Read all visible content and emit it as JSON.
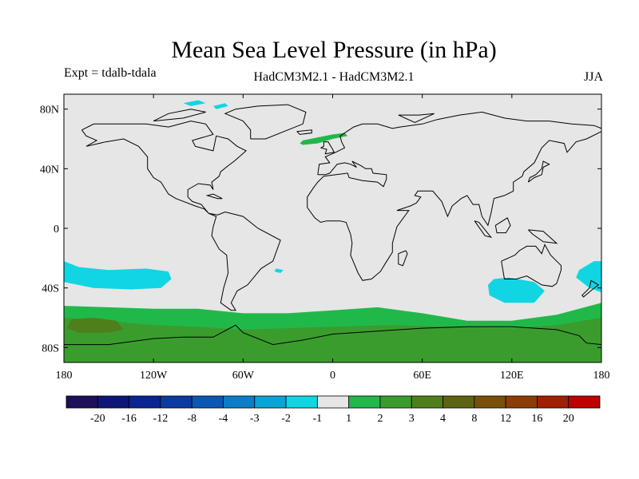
{
  "chart_data": {
    "type": "map-contour",
    "title": "Mean Sea Level Pressure (in hPa)",
    "experiment_label": "Expt = tdalb-tdala",
    "model_label": "HadCM3M2.1 - HadCM3M2.1",
    "season_label": "JJA",
    "lon_range": [
      -180,
      180
    ],
    "lat_range": [
      -90,
      90
    ],
    "x_ticks": [
      {
        "lon": -180,
        "label": "180"
      },
      {
        "lon": -120,
        "label": "120W"
      },
      {
        "lon": -60,
        "label": "60W"
      },
      {
        "lon": 0,
        "label": "0"
      },
      {
        "lon": 60,
        "label": "60E"
      },
      {
        "lon": 120,
        "label": "120E"
      },
      {
        "lon": 180,
        "label": "180"
      }
    ],
    "y_ticks": [
      {
        "lat": 80,
        "label": "80N"
      },
      {
        "lat": 40,
        "label": "40N"
      },
      {
        "lat": 0,
        "label": "0"
      },
      {
        "lat": -40,
        "label": "40S"
      },
      {
        "lat": -80,
        "label": "80S"
      }
    ],
    "colorbar": {
      "colors": [
        "#1f0f5a",
        "#0d1777",
        "#0a2493",
        "#0b3aa3",
        "#0b57b5",
        "#0a7ec8",
        "#0aa3d8",
        "#11d5e2",
        "#e6e6e6",
        "#21b84a",
        "#3b9c2e",
        "#4f7f1b",
        "#5e6312",
        "#7a4f0b",
        "#8d3c05",
        "#a11f02",
        "#c00000"
      ],
      "labels": [
        "-20",
        "-16",
        "-12",
        "-8",
        "-4",
        "-3",
        "-2",
        "-1",
        "1",
        "2",
        "3",
        "4",
        "8",
        "12",
        "16",
        "20"
      ]
    },
    "regions": [
      {
        "name": "north-atlantic-positive",
        "level": "2",
        "color": "#21b84a",
        "polygon": [
          [
            -20,
            59
          ],
          [
            -10,
            61
          ],
          [
            0,
            63
          ],
          [
            8,
            64
          ],
          [
            10,
            62
          ],
          [
            0,
            60
          ],
          [
            -10,
            57
          ],
          [
            -20,
            56
          ],
          [
            -22,
            57
          ]
        ]
      },
      {
        "name": "southern-ocean-positive",
        "level": "2",
        "color": "#21b84a",
        "polygon": [
          [
            -180,
            -52
          ],
          [
            -150,
            -53
          ],
          [
            -120,
            -54
          ],
          [
            -90,
            -54
          ],
          [
            -60,
            -57
          ],
          [
            -30,
            -57
          ],
          [
            0,
            -55
          ],
          [
            30,
            -53
          ],
          [
            60,
            -57
          ],
          [
            90,
            -62
          ],
          [
            120,
            -62
          ],
          [
            150,
            -58
          ],
          [
            180,
            -50
          ],
          [
            180,
            -90
          ],
          [
            -180,
            -90
          ]
        ]
      },
      {
        "name": "southern-ocean-positive-3",
        "level": "3",
        "color": "#3b9c2e",
        "polygon": [
          [
            -180,
            -60
          ],
          [
            -150,
            -62
          ],
          [
            -120,
            -65
          ],
          [
            -90,
            -66
          ],
          [
            -60,
            -68
          ],
          [
            -30,
            -67
          ],
          [
            0,
            -66
          ],
          [
            40,
            -65
          ],
          [
            80,
            -66
          ],
          [
            120,
            -67
          ],
          [
            150,
            -65
          ],
          [
            180,
            -60
          ],
          [
            180,
            -90
          ],
          [
            -180,
            -90
          ]
        ]
      },
      {
        "name": "southern-ocean-positive-4",
        "level": "4",
        "color": "#4f7f1b",
        "polygon": [
          [
            -175,
            -61
          ],
          [
            -160,
            -60
          ],
          [
            -145,
            -62
          ],
          [
            -140,
            -68
          ],
          [
            -150,
            -70
          ],
          [
            -170,
            -70
          ],
          [
            -178,
            -67
          ]
        ]
      },
      {
        "name": "south-pacific-negative",
        "level": "-1",
        "color": "#11d5e2",
        "polygon": [
          [
            -180,
            -22
          ],
          [
            -170,
            -26
          ],
          [
            -150,
            -28
          ],
          [
            -125,
            -27
          ],
          [
            -110,
            -29
          ],
          [
            -108,
            -34
          ],
          [
            -115,
            -40
          ],
          [
            -135,
            -41
          ],
          [
            -160,
            -40
          ],
          [
            -180,
            -36
          ]
        ]
      },
      {
        "name": "indian-ocean-negative",
        "level": "-1",
        "color": "#11d5e2",
        "polygon": [
          [
            108,
            -34
          ],
          [
            118,
            -33
          ],
          [
            135,
            -36
          ],
          [
            142,
            -42
          ],
          [
            135,
            -50
          ],
          [
            115,
            -50
          ],
          [
            105,
            -45
          ],
          [
            104,
            -38
          ]
        ]
      },
      {
        "name": "tasman-negative",
        "level": "-1",
        "color": "#11d5e2",
        "polygon": [
          [
            165,
            -28
          ],
          [
            175,
            -22
          ],
          [
            180,
            -22
          ],
          [
            180,
            -43
          ],
          [
            172,
            -40
          ],
          [
            163,
            -33
          ]
        ]
      },
      {
        "name": "south-atlantic-small-negative",
        "level": "-1",
        "color": "#11d5e2",
        "polygon": [
          [
            -38,
            -27
          ],
          [
            -33,
            -28
          ],
          [
            -35,
            -30
          ],
          [
            -39,
            -29
          ]
        ]
      },
      {
        "name": "arctic-negative-1",
        "level": "-1",
        "color": "#11d5e2",
        "polygon": [
          [
            -100,
            84
          ],
          [
            -90,
            86
          ],
          [
            -85,
            84
          ],
          [
            -95,
            82
          ]
        ]
      },
      {
        "name": "arctic-negative-2",
        "level": "-1",
        "color": "#11d5e2",
        "polygon": [
          [
            -80,
            82
          ],
          [
            -72,
            84
          ],
          [
            -70,
            82
          ],
          [
            -78,
            80
          ]
        ]
      }
    ]
  }
}
